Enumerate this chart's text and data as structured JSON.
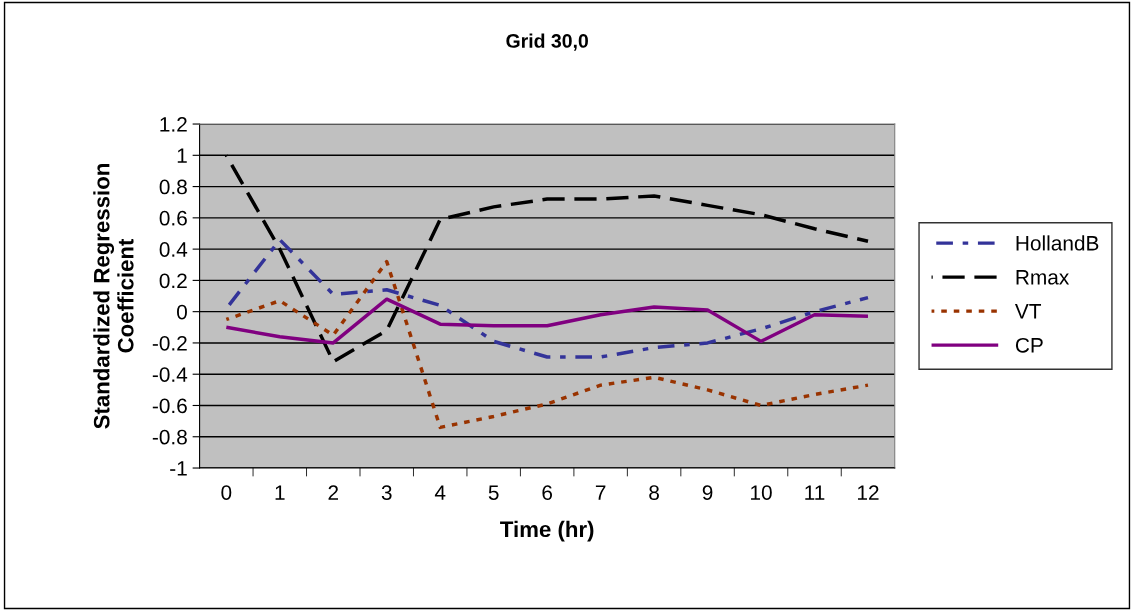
{
  "chart_data": {
    "type": "line",
    "title": "Grid 30,0",
    "xlabel": "Time (hr)",
    "ylabel": "Standardized Regression\nCoefficient",
    "categories": [
      "0",
      "1",
      "2",
      "3",
      "4",
      "5",
      "6",
      "7",
      "8",
      "9",
      "10",
      "11",
      "12"
    ],
    "ylim": [
      -1,
      1.2
    ],
    "yticks": [
      -1,
      -0.8,
      -0.6,
      -0.4,
      -0.2,
      0,
      0.2,
      0.4,
      0.6,
      0.8,
      1,
      1.2
    ],
    "grid": "y",
    "legend": "right",
    "series": [
      {
        "name": "HollandB",
        "color": "#333399",
        "line_style": "dashdot",
        "values": [
          0.02,
          0.46,
          0.11,
          0.14,
          0.04,
          -0.19,
          -0.29,
          -0.29,
          -0.23,
          -0.2,
          -0.11,
          0.0,
          0.09
        ]
      },
      {
        "name": "Rmax",
        "color": "#000000",
        "line_style": "dashed",
        "values": [
          1.0,
          0.4,
          -0.32,
          -0.12,
          0.59,
          0.67,
          0.72,
          0.72,
          0.74,
          0.68,
          0.62,
          0.53,
          0.45
        ]
      },
      {
        "name": "VT",
        "color": "#993300",
        "line_style": "dotted",
        "values": [
          -0.05,
          0.07,
          -0.15,
          0.32,
          -0.74,
          -0.67,
          -0.59,
          -0.47,
          -0.42,
          -0.5,
          -0.6,
          -0.53,
          -0.47
        ]
      },
      {
        "name": "CP",
        "color": "#800080",
        "line_style": "solid",
        "values": [
          -0.1,
          -0.16,
          -0.2,
          0.08,
          -0.08,
          -0.09,
          -0.09,
          -0.02,
          0.03,
          0.01,
          -0.19,
          -0.02,
          -0.03
        ]
      }
    ]
  }
}
